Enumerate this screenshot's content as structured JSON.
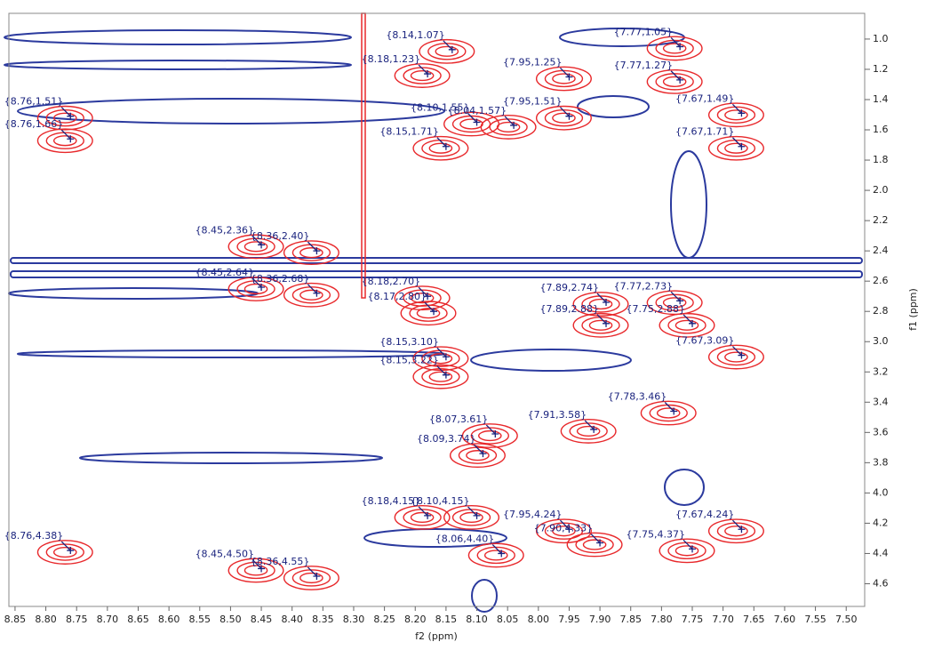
{
  "chart_data": {
    "type": "contour",
    "x_label": "f2 (ppm)",
    "y_label": "f1 (ppm)",
    "xlim": [
      8.86,
      7.47
    ],
    "ylim": [
      0.83,
      4.75
    ],
    "xticks": [
      8.85,
      {
        "value": 8.8,
        "label": "8.80"
      },
      8.75,
      {
        "value": 8.7,
        "label": "8.70"
      },
      8.65,
      {
        "value": 8.6,
        "label": "8.60"
      },
      8.55,
      {
        "value": 8.5,
        "label": "8.50"
      },
      8.45,
      {
        "value": 8.4,
        "label": "8.40"
      },
      8.35,
      {
        "value": 8.3,
        "label": "8.30"
      },
      8.25,
      {
        "value": 8.2,
        "label": "8.20"
      },
      8.15,
      {
        "value": 8.1,
        "label": "8.10"
      },
      8.05,
      {
        "value": 8,
        "label": "8.00"
      },
      7.95,
      {
        "value": 7.9,
        "label": "7.90"
      },
      7.85,
      {
        "value": 7.8,
        "label": "7.80"
      },
      7.75,
      {
        "value": 7.7,
        "label": "7.70"
      },
      7.65,
      {
        "value": 7.6,
        "label": "7.60"
      },
      7.55,
      {
        "value": 7.5,
        "label": "7.50"
      }
    ],
    "yticks": [
      {
        "value": 1,
        "label": "1.0"
      },
      1.2,
      1.4,
      1.6,
      1.8,
      {
        "value": 2,
        "label": "2.0"
      },
      2.2,
      2.4,
      2.6,
      2.8,
      {
        "value": 3,
        "label": "3.0"
      },
      3.2,
      3.4,
      3.6,
      3.8,
      {
        "value": 4,
        "label": "4.0"
      },
      4.2,
      4.4,
      4.6
    ],
    "peak_color": "#1a237e",
    "positive_color": "#e8282b",
    "negative_color": "#2b3a9e",
    "x": [
      8.14,
      8.18,
      7.77,
      7.95,
      7.77,
      8.76,
      8.76,
      8.1,
      7.95,
      7.67,
      8.15,
      8.04,
      7.67,
      8.36,
      8.45,
      8.36,
      8.45,
      8.18,
      8.17,
      7.89,
      7.89,
      7.77,
      7.75,
      7.67,
      8.15,
      8.15,
      7.78,
      8.07,
      7.91,
      8.09,
      8.1,
      7.95,
      7.67,
      8.18,
      8.06,
      7.75,
      8.76,
      8.45,
      8.36,
      7.9
    ],
    "values": [
      1.07,
      1.23,
      1.05,
      1.25,
      1.27,
      1.51,
      1.66,
      1.55,
      1.51,
      1.49,
      1.71,
      1.57,
      1.71,
      2.4,
      2.36,
      2.68,
      2.64,
      2.7,
      2.8,
      2.74,
      2.88,
      2.73,
      2.88,
      3.09,
      3.1,
      3.22,
      3.46,
      3.61,
      3.58,
      3.74,
      4.15,
      4.24,
      4.24,
      4.15,
      4.4,
      4.37,
      4.38,
      4.5,
      4.55,
      4.33
    ],
    "value_labels": [
      "{8.14,1.07}",
      "{8.18,1.23}",
      "{7.77,1.05}",
      "{7.95,1.25}",
      "{7.77,1.27}",
      "{8.76,1.51}",
      "{8.76,1.66}",
      "{8.10,1.55}",
      "{7.95,1.51}",
      "{7.67,1.49}",
      "{8.15,1.71}",
      "{8.04,1.57}",
      "{7.67,1.71}",
      "{8.36,2.40}",
      "{8.45,2.36}",
      "{8.36,2.68}",
      "{8.45,2.64}",
      "{8.18,2.70}",
      "{8.17,2.80}",
      "{7.89,2.74}",
      "{7.89,2.88}",
      "{7.77,2.73}",
      "{7.75,2.88}",
      "{7.67,3.09}",
      "{8.15,3.10}",
      "{8.15,3.22}",
      "{7.78,3.46}",
      "{8.07,3.61}",
      "{7.91,3.58}",
      "{8.09,3.74}",
      "{8.10,4.15}",
      "{7.95,4.24}",
      "{7.67,4.24}",
      "{8.18,4.15}",
      "{8.06,4.40}",
      "{7.75,4.37}",
      "{8.76,4.38}",
      "{8.45,4.50}",
      "{8.36,4.55}",
      "{7.90,4.33}"
    ]
  }
}
